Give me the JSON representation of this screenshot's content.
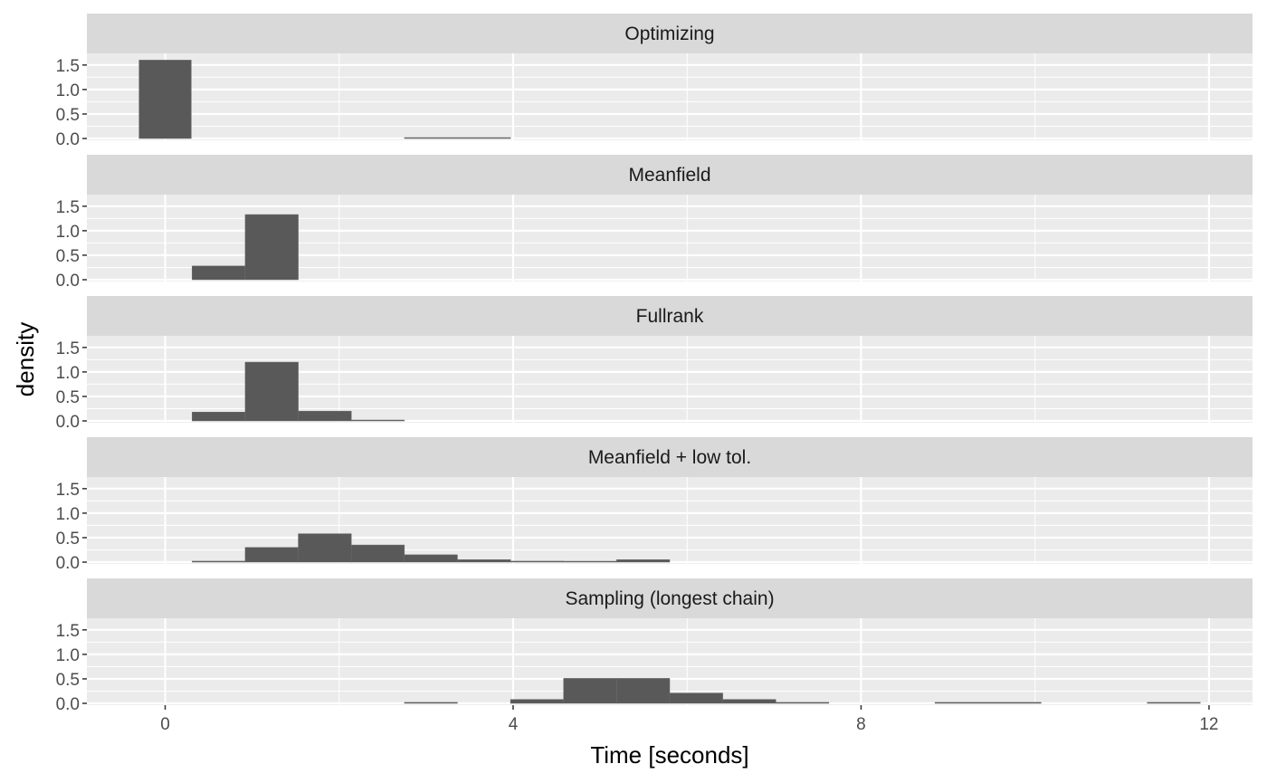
{
  "chart_data": {
    "type": "histogram",
    "facet": "rows",
    "xlabel": "Time [seconds]",
    "ylabel": "density",
    "xlim": [
      -0.9,
      12.5
    ],
    "ylim": [
      0,
      1.7
    ],
    "x_ticks": [
      0,
      4,
      8,
      12
    ],
    "y_ticks": [
      0.0,
      0.5,
      1.0,
      1.5
    ],
    "y_tick_labels": [
      "0.0",
      "0.5",
      "1.0",
      "1.5"
    ],
    "bin_width": 0.608,
    "grid": true,
    "colors": {
      "bar": "#595959",
      "panel": "#ebebeb",
      "strip": "#d9d9d9",
      "grid": "#ffffff",
      "ticks": "#333333"
    },
    "panels": [
      {
        "title": "Optimizing",
        "bins": [
          {
            "x0": -0.3,
            "x1": 0.3,
            "density": 1.6
          },
          {
            "x0": 2.75,
            "x1": 3.36,
            "density": 0.01
          },
          {
            "x0": 3.36,
            "x1": 3.97,
            "density": 0.015
          }
        ]
      },
      {
        "title": "Meanfield",
        "bins": [
          {
            "x0": 0.31,
            "x1": 0.92,
            "density": 0.28
          },
          {
            "x0": 0.92,
            "x1": 1.53,
            "density": 1.33
          }
        ]
      },
      {
        "title": "Fullrank",
        "bins": [
          {
            "x0": 0.31,
            "x1": 0.92,
            "density": 0.18
          },
          {
            "x0": 0.92,
            "x1": 1.53,
            "density": 1.2
          },
          {
            "x0": 1.53,
            "x1": 2.14,
            "density": 0.2
          },
          {
            "x0": 2.14,
            "x1": 2.75,
            "density": 0.01
          }
        ]
      },
      {
        "title": "Meanfield + low tol.",
        "bins": [
          {
            "x0": 0.31,
            "x1": 0.92,
            "density": 0.02
          },
          {
            "x0": 0.92,
            "x1": 1.53,
            "density": 0.3
          },
          {
            "x0": 1.53,
            "x1": 2.14,
            "density": 0.58
          },
          {
            "x0": 2.14,
            "x1": 2.75,
            "density": 0.35
          },
          {
            "x0": 2.75,
            "x1": 3.36,
            "density": 0.15
          },
          {
            "x0": 3.36,
            "x1": 3.97,
            "density": 0.05
          },
          {
            "x0": 3.97,
            "x1": 4.58,
            "density": 0.02
          },
          {
            "x0": 4.58,
            "x1": 5.19,
            "density": 0.01
          },
          {
            "x0": 5.19,
            "x1": 5.8,
            "density": 0.05
          }
        ]
      },
      {
        "title": "Sampling (longest chain)",
        "bins": [
          {
            "x0": 2.75,
            "x1": 3.36,
            "density": 0.02
          },
          {
            "x0": 3.97,
            "x1": 4.58,
            "density": 0.08
          },
          {
            "x0": 4.58,
            "x1": 5.19,
            "density": 0.51
          },
          {
            "x0": 5.19,
            "x1": 5.8,
            "density": 0.51
          },
          {
            "x0": 5.8,
            "x1": 6.41,
            "density": 0.21
          },
          {
            "x0": 6.41,
            "x1": 7.02,
            "density": 0.08
          },
          {
            "x0": 7.02,
            "x1": 7.63,
            "density": 0.02
          },
          {
            "x0": 8.85,
            "x1": 9.46,
            "density": 0.02
          },
          {
            "x0": 9.46,
            "x1": 10.07,
            "density": 0.02
          },
          {
            "x0": 11.29,
            "x1": 11.9,
            "density": 0.02
          }
        ]
      }
    ]
  }
}
